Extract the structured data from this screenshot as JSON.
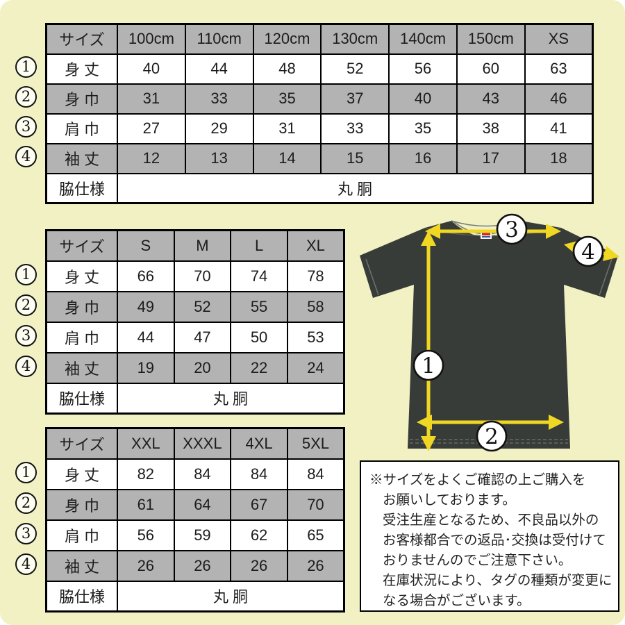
{
  "markers": [
    "1",
    "2",
    "3",
    "4"
  ],
  "colors": {
    "background": "#f1f1c4",
    "table_header_gray": "#b3b3b3",
    "tshirt_body": "#383c39",
    "arrow_yellow": "#f0d723",
    "border_black": "#000000"
  },
  "tables": [
    {
      "id": "kids",
      "header": [
        "サイズ",
        "100cm",
        "110cm",
        "120cm",
        "130cm",
        "140cm",
        "150cm",
        "XS"
      ],
      "rows": [
        {
          "label": "身 丈",
          "values": [
            "40",
            "44",
            "48",
            "52",
            "56",
            "60",
            "63"
          ]
        },
        {
          "label": "身 巾",
          "values": [
            "31",
            "33",
            "35",
            "37",
            "40",
            "43",
            "46"
          ]
        },
        {
          "label": "肩 巾",
          "values": [
            "27",
            "29",
            "31",
            "33",
            "35",
            "38",
            "41"
          ]
        },
        {
          "label": "袖 丈",
          "values": [
            "12",
            "13",
            "14",
            "15",
            "16",
            "17",
            "18"
          ]
        }
      ],
      "footer": {
        "label": "脇仕様",
        "value": "丸 胴"
      }
    },
    {
      "id": "adult",
      "header": [
        "サイズ",
        "S",
        "M",
        "L",
        "XL"
      ],
      "rows": [
        {
          "label": "身 丈",
          "values": [
            "66",
            "70",
            "74",
            "78"
          ]
        },
        {
          "label": "身 巾",
          "values": [
            "49",
            "52",
            "55",
            "58"
          ]
        },
        {
          "label": "肩 巾",
          "values": [
            "44",
            "47",
            "50",
            "53"
          ]
        },
        {
          "label": "袖 丈",
          "values": [
            "19",
            "20",
            "22",
            "24"
          ]
        }
      ],
      "footer": {
        "label": "脇仕様",
        "value": "丸 胴"
      }
    },
    {
      "id": "big",
      "header": [
        "サイズ",
        "XXL",
        "XXXL",
        "4XL",
        "5XL"
      ],
      "rows": [
        {
          "label": "身 丈",
          "values": [
            "82",
            "84",
            "84",
            "84"
          ]
        },
        {
          "label": "身 巾",
          "values": [
            "61",
            "64",
            "67",
            "70"
          ]
        },
        {
          "label": "肩 巾",
          "values": [
            "56",
            "59",
            "62",
            "65"
          ]
        },
        {
          "label": "袖 丈",
          "values": [
            "26",
            "26",
            "26",
            "26"
          ]
        }
      ],
      "footer": {
        "label": "脇仕様",
        "value": "丸 胴"
      }
    }
  ],
  "note": {
    "lines": [
      "※サイズをよくご確認の上ご購入を",
      "お願いしております。",
      "受注生産となるため、不良品以外の",
      "お客様都合での返品･交換は受付けて",
      "おりませんのでご注意下さい。",
      "在庫状況により、タグの種類が変更に",
      "なる場合がございます。"
    ]
  }
}
